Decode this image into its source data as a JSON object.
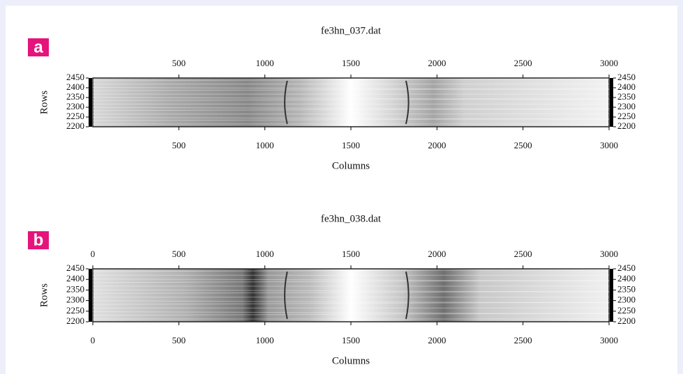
{
  "chart_data": [
    {
      "type": "image",
      "panel": "a",
      "title": "fe3hn_037.dat",
      "xlabel": "Columns",
      "ylabel": "Rows",
      "xlim": [
        0,
        3000
      ],
      "ylim": [
        2200,
        2450
      ],
      "xticks": [
        500,
        1000,
        1500,
        2000,
        2500,
        3000
      ],
      "yticks": [
        2200,
        2250,
        2300,
        2350,
        2400,
        2450
      ]
    },
    {
      "type": "image",
      "panel": "b",
      "title": "fe3hn_038.dat",
      "xlabel": "Columns",
      "ylabel": "Rows",
      "xlim": [
        0,
        3000
      ],
      "ylim": [
        2200,
        2450
      ],
      "xticks": [
        0,
        500,
        1000,
        1500,
        2000,
        2500,
        3000
      ],
      "yticks": [
        2200,
        2250,
        2300,
        2350,
        2400,
        2450
      ]
    }
  ]
}
